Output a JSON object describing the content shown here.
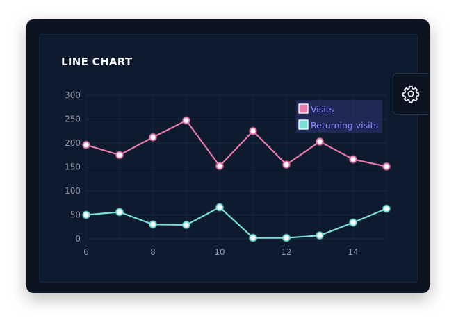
{
  "chart_data": {
    "type": "line",
    "title": "LINE CHART",
    "x": [
      6,
      7,
      8,
      9,
      10,
      11,
      12,
      13,
      14,
      15
    ],
    "xlim": [
      6,
      15
    ],
    "xticks": [
      6,
      8,
      10,
      12,
      14
    ],
    "ylim": [
      0,
      300
    ],
    "yticks": [
      0,
      50,
      100,
      150,
      200,
      250,
      300
    ],
    "grid": true,
    "legend_position": "top-right",
    "series": [
      {
        "name": "Visits",
        "color": "#e87aac",
        "values": [
          196,
          175,
          212,
          247,
          152,
          225,
          155,
          203,
          166,
          151
        ]
      },
      {
        "name": "Returning visits",
        "color": "#79dfd9",
        "values": [
          50,
          56,
          30,
          29,
          66,
          2,
          2,
          7,
          34,
          63
        ]
      }
    ]
  },
  "colors": {
    "legend_text": "#8f8cff",
    "legend_bg": "#262e63"
  },
  "settings": {
    "icon": "gear-icon"
  }
}
